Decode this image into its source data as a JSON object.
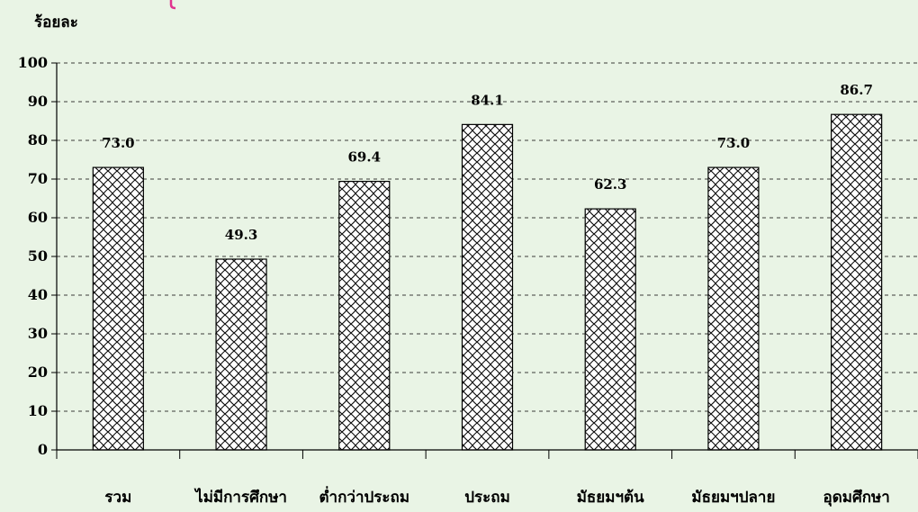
{
  "chart_data": {
    "type": "bar",
    "title": "",
    "xlabel": "",
    "ylabel": "ร้อยละ",
    "ylim": [
      0,
      100
    ],
    "yticks": [
      0,
      10,
      20,
      30,
      40,
      50,
      60,
      70,
      80,
      90,
      100
    ],
    "grid": "horizontal-dashed",
    "legend": "none",
    "categories": [
      "รวม",
      "ไม่มีการศึกษา",
      "ต่ำกว่าประถม",
      "ประถม",
      "มัธยมฯต้น",
      "มัธยมฯปลาย",
      "อุดมศึกษา"
    ],
    "values": [
      73.0,
      49.3,
      69.4,
      84.1,
      62.3,
      73.0,
      86.7
    ],
    "value_labels": [
      "73.0",
      "49.3",
      "69.4",
      "84.1",
      "62.3",
      "73.0",
      "86.7"
    ],
    "colors": {
      "background": "#e9f4e5",
      "bar_fill": "#ffffff",
      "bar_pattern": "#000000",
      "axis": "#000000",
      "grid": "#000000",
      "accent_mark": "#e0348f"
    }
  }
}
